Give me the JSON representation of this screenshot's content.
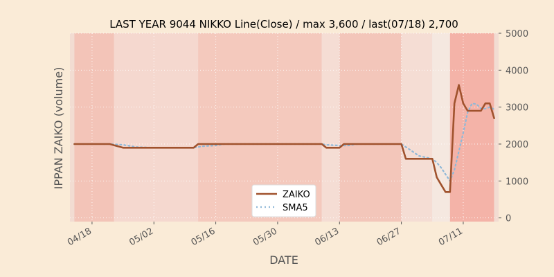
{
  "chart_data": {
    "type": "line",
    "title": "LAST YEAR 9044 NIKKO Line(Close) / max 3,600 / last(07/18) 2,700",
    "xlabel": "DATE",
    "ylabel": "IPPAN ZAIKO (volume)",
    "ylim": [
      -100,
      5000
    ],
    "yticks": [
      0,
      1000,
      2000,
      3000,
      4000,
      5000
    ],
    "yaxis_side": "right",
    "x_start": "2016-04-13",
    "x_end": "2016-07-19",
    "xticks": [
      {
        "date": "2016-04-18",
        "label": "04/18"
      },
      {
        "date": "2016-05-02",
        "label": "05/02"
      },
      {
        "date": "2016-05-16",
        "label": "05/16"
      },
      {
        "date": "2016-05-30",
        "label": "05/30"
      },
      {
        "date": "2016-06-13",
        "label": "06/13"
      },
      {
        "date": "2016-06-27",
        "label": "06/27"
      },
      {
        "date": "2016-07-11",
        "label": "07/11"
      }
    ],
    "grid": true,
    "legend_position": "bottom-center",
    "series": [
      {
        "name": "ZAIKO",
        "color": "#a0522d",
        "style": "solid",
        "points": [
          [
            "2016-04-14",
            2000
          ],
          [
            "2016-04-15",
            2000
          ],
          [
            "2016-04-18",
            2000
          ],
          [
            "2016-04-19",
            2000
          ],
          [
            "2016-04-20",
            2000
          ],
          [
            "2016-04-21",
            2000
          ],
          [
            "2016-04-22",
            2000
          ],
          [
            "2016-04-25",
            1900
          ],
          [
            "2016-04-26",
            1900
          ],
          [
            "2016-04-27",
            1900
          ],
          [
            "2016-04-28",
            1900
          ],
          [
            "2016-05-02",
            1900
          ],
          [
            "2016-05-06",
            1900
          ],
          [
            "2016-05-09",
            1900
          ],
          [
            "2016-05-10",
            1900
          ],
          [
            "2016-05-11",
            1900
          ],
          [
            "2016-05-12",
            2000
          ],
          [
            "2016-05-13",
            2000
          ],
          [
            "2016-05-16",
            2000
          ],
          [
            "2016-05-17",
            2000
          ],
          [
            "2016-05-18",
            2000
          ],
          [
            "2016-05-19",
            2000
          ],
          [
            "2016-05-20",
            2000
          ],
          [
            "2016-05-23",
            2000
          ],
          [
            "2016-05-24",
            2000
          ],
          [
            "2016-05-25",
            2000
          ],
          [
            "2016-05-26",
            2000
          ],
          [
            "2016-05-27",
            2000
          ],
          [
            "2016-05-30",
            2000
          ],
          [
            "2016-05-31",
            2000
          ],
          [
            "2016-06-01",
            2000
          ],
          [
            "2016-06-02",
            2000
          ],
          [
            "2016-06-03",
            2000
          ],
          [
            "2016-06-06",
            2000
          ],
          [
            "2016-06-07",
            2000
          ],
          [
            "2016-06-08",
            2000
          ],
          [
            "2016-06-09",
            2000
          ],
          [
            "2016-06-10",
            1900
          ],
          [
            "2016-06-13",
            1900
          ],
          [
            "2016-06-14",
            2000
          ],
          [
            "2016-06-15",
            2000
          ],
          [
            "2016-06-16",
            2000
          ],
          [
            "2016-06-17",
            2000
          ],
          [
            "2016-06-20",
            2000
          ],
          [
            "2016-06-21",
            2000
          ],
          [
            "2016-06-22",
            2000
          ],
          [
            "2016-06-23",
            2000
          ],
          [
            "2016-06-24",
            2000
          ],
          [
            "2016-06-27",
            2000
          ],
          [
            "2016-06-28",
            1600
          ],
          [
            "2016-06-29",
            1600
          ],
          [
            "2016-06-30",
            1600
          ],
          [
            "2016-07-01",
            1600
          ],
          [
            "2016-07-04",
            1600
          ],
          [
            "2016-07-05",
            1100
          ],
          [
            "2016-07-06",
            900
          ],
          [
            "2016-07-07",
            700
          ],
          [
            "2016-07-08",
            700
          ],
          [
            "2016-07-09",
            3100
          ],
          [
            "2016-07-10",
            3600
          ],
          [
            "2016-07-11",
            3100
          ],
          [
            "2016-07-12",
            2900
          ],
          [
            "2016-07-13",
            2900
          ],
          [
            "2016-07-14",
            2900
          ],
          [
            "2016-07-15",
            2900
          ],
          [
            "2016-07-16",
            3100
          ],
          [
            "2016-07-17",
            3100
          ],
          [
            "2016-07-18",
            2700
          ]
        ]
      },
      {
        "name": "SMA5",
        "color": "#8fb8d8",
        "style": "dotted",
        "points": [
          [
            "2016-04-14",
            2000
          ],
          [
            "2016-04-22",
            2000
          ],
          [
            "2016-04-25",
            1980
          ],
          [
            "2016-04-26",
            1960
          ],
          [
            "2016-04-27",
            1940
          ],
          [
            "2016-04-28",
            1920
          ],
          [
            "2016-05-02",
            1900
          ],
          [
            "2016-05-11",
            1900
          ],
          [
            "2016-05-12",
            1920
          ],
          [
            "2016-05-13",
            1940
          ],
          [
            "2016-05-16",
            1960
          ],
          [
            "2016-05-17",
            1980
          ],
          [
            "2016-05-18",
            2000
          ],
          [
            "2016-06-09",
            2000
          ],
          [
            "2016-06-10",
            1980
          ],
          [
            "2016-06-13",
            1960
          ],
          [
            "2016-06-14",
            1960
          ],
          [
            "2016-06-15",
            1960
          ],
          [
            "2016-06-16",
            1980
          ],
          [
            "2016-06-17",
            2000
          ],
          [
            "2016-06-27",
            2000
          ],
          [
            "2016-06-28",
            1920
          ],
          [
            "2016-06-29",
            1840
          ],
          [
            "2016-06-30",
            1760
          ],
          [
            "2016-07-01",
            1680
          ],
          [
            "2016-07-04",
            1600
          ],
          [
            "2016-07-05",
            1500
          ],
          [
            "2016-07-06",
            1360
          ],
          [
            "2016-07-07",
            1180
          ],
          [
            "2016-07-08",
            1000
          ],
          [
            "2016-07-09",
            1300
          ],
          [
            "2016-07-10",
            1800
          ],
          [
            "2016-07-11",
            2300
          ],
          [
            "2016-07-12",
            2860
          ],
          [
            "2016-07-13",
            3100
          ],
          [
            "2016-07-14",
            3080
          ],
          [
            "2016-07-15",
            2960
          ],
          [
            "2016-07-16",
            2960
          ],
          [
            "2016-07-17",
            3000
          ],
          [
            "2016-07-18",
            2940
          ]
        ]
      }
    ],
    "background_bands": [
      {
        "from": "2016-04-13",
        "to": "2016-04-14",
        "color": "#f2dcd2"
      },
      {
        "from": "2016-04-14",
        "to": "2016-04-23",
        "color": "#f3c4b8"
      },
      {
        "from": "2016-04-23",
        "to": "2016-05-12",
        "color": "#f5d8cf"
      },
      {
        "from": "2016-05-12",
        "to": "2016-06-09",
        "color": "#f4c9bd"
      },
      {
        "from": "2016-06-09",
        "to": "2016-06-13",
        "color": "#f5ddd4"
      },
      {
        "from": "2016-06-13",
        "to": "2016-06-27",
        "color": "#f3c6ba"
      },
      {
        "from": "2016-06-27",
        "to": "2016-07-04",
        "color": "#f5ddd4"
      },
      {
        "from": "2016-07-04",
        "to": "2016-07-08",
        "color": "#f5e8e0"
      },
      {
        "from": "2016-07-08",
        "to": "2016-07-18",
        "color": "#f4b3a8"
      },
      {
        "from": "2016-07-18",
        "to": "2016-07-19",
        "color": "#f2dcd2"
      }
    ]
  }
}
